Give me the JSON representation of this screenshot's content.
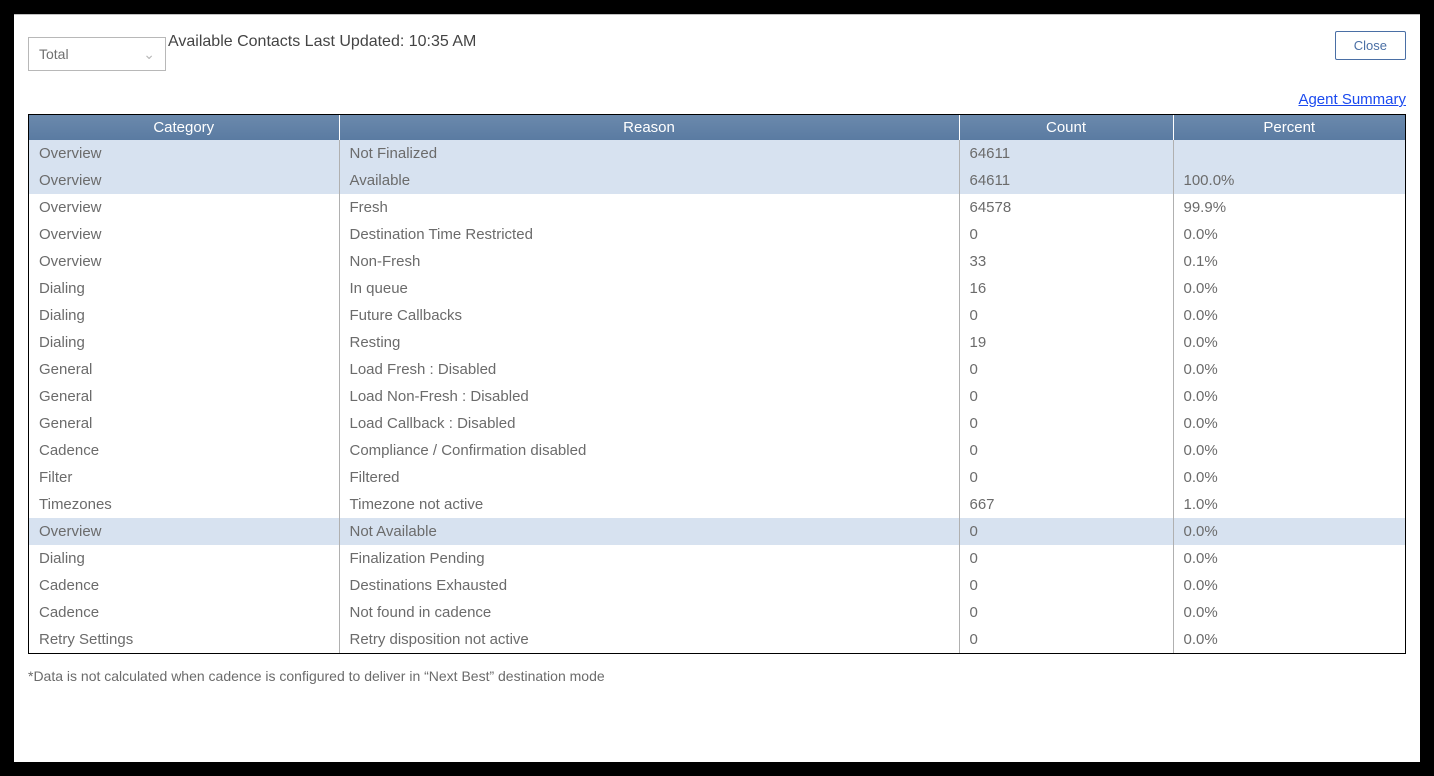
{
  "header": {
    "select_value": "Total",
    "updated_text": "Available Contacts Last Updated: 10:35 AM",
    "close_label": "Close",
    "summary_link": "Agent Summary"
  },
  "table": {
    "columns": [
      "Category",
      "Reason",
      "Count",
      "Percent"
    ],
    "rows": [
      {
        "category": "Overview",
        "reason": "Not Finalized",
        "count": "64611",
        "percent": "",
        "highlight": true
      },
      {
        "category": "Overview",
        "reason": "Available",
        "count": "64611",
        "percent": "100.0%",
        "highlight": true
      },
      {
        "category": "Overview",
        "reason": "Fresh",
        "count": "64578",
        "percent": "99.9%",
        "highlight": false
      },
      {
        "category": "Overview",
        "reason": "Destination Time Restricted",
        "count": "0",
        "percent": "0.0%",
        "highlight": false
      },
      {
        "category": "Overview",
        "reason": "Non-Fresh",
        "count": "33",
        "percent": "0.1%",
        "highlight": false
      },
      {
        "category": "Dialing",
        "reason": "In queue",
        "count": "16",
        "percent": "0.0%",
        "highlight": false
      },
      {
        "category": "Dialing",
        "reason": "Future Callbacks",
        "count": "0",
        "percent": "0.0%",
        "highlight": false
      },
      {
        "category": "Dialing",
        "reason": "Resting",
        "count": "19",
        "percent": "0.0%",
        "highlight": false
      },
      {
        "category": "General",
        "reason": "Load Fresh : Disabled",
        "count": "0",
        "percent": "0.0%",
        "highlight": false
      },
      {
        "category": "General",
        "reason": "Load Non-Fresh : Disabled",
        "count": "0",
        "percent": "0.0%",
        "highlight": false
      },
      {
        "category": "General",
        "reason": "Load Callback : Disabled",
        "count": "0",
        "percent": "0.0%",
        "highlight": false
      },
      {
        "category": "Cadence",
        "reason": "Compliance / Confirmation disabled",
        "count": "0",
        "percent": "0.0%",
        "highlight": false
      },
      {
        "category": "Filter",
        "reason": "Filtered",
        "count": "0",
        "percent": "0.0%",
        "highlight": false
      },
      {
        "category": "Timezones",
        "reason": "Timezone not active",
        "count": "667",
        "percent": "1.0%",
        "highlight": false
      },
      {
        "category": "Overview",
        "reason": "Not Available",
        "count": "0",
        "percent": "0.0%",
        "highlight": true
      },
      {
        "category": "Dialing",
        "reason": "Finalization Pending",
        "count": "0",
        "percent": "0.0%",
        "highlight": false
      },
      {
        "category": "Cadence",
        "reason": "Destinations Exhausted",
        "count": "0",
        "percent": "0.0%",
        "highlight": false
      },
      {
        "category": "Cadence",
        "reason": "Not found in cadence",
        "count": "0",
        "percent": "0.0%",
        "highlight": false
      },
      {
        "category": "Retry Settings",
        "reason": "Retry disposition not active",
        "count": "0",
        "percent": "0.0%",
        "highlight": false
      }
    ]
  },
  "footnote": "*Data is not calculated when cadence is configured to deliver in “Next Best” destination mode",
  "colors": {
    "header_bg_top": "#6b89ac",
    "header_bg_bottom": "#5a7ba2",
    "highlight_row": "#d7e2f0",
    "link": "#1b4aef",
    "text": "#6b6b6b",
    "border": "#b0b0b0"
  }
}
